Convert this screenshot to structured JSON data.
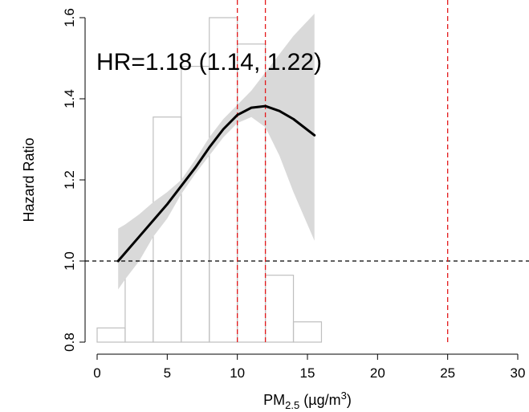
{
  "chart_data": {
    "type": "line",
    "title": "",
    "annotation": "HR=1.18 (1.14, 1.22)",
    "xlabel": {
      "main": "PM",
      "sub": "2.5",
      "unit_prefix": " (µg/m",
      "unit_sup": "3",
      "unit_suffix": ")"
    },
    "ylabel": "Hazard Ratio",
    "xlim": [
      0,
      30
    ],
    "ylim": [
      0.8,
      1.6
    ],
    "x_ticks": [
      0,
      5,
      10,
      15,
      20,
      25,
      30
    ],
    "y_ticks": [
      0.8,
      1.0,
      1.2,
      1.4,
      1.6
    ],
    "x_tick_labels": [
      "0",
      "5",
      "10",
      "15",
      "20",
      "25",
      "30"
    ],
    "y_tick_labels": [
      "0.8",
      "1.0",
      "1.2",
      "1.4",
      "1.6"
    ],
    "series": [
      {
        "type": "line",
        "x": [
          1.5,
          2,
          3,
          4,
          5,
          6,
          7,
          8,
          9,
          10,
          11,
          12,
          13,
          14,
          15.5
        ],
        "y": [
          1.0,
          1.02,
          1.06,
          1.1,
          1.14,
          1.185,
          1.23,
          1.28,
          1.325,
          1.36,
          1.378,
          1.382,
          1.37,
          1.35,
          1.31
        ]
      },
      {
        "type": "band",
        "x": [
          1.5,
          2,
          3,
          4,
          5,
          6,
          7,
          8,
          9,
          10,
          11,
          12,
          13,
          14,
          15.5
        ],
        "upper": [
          1.08,
          1.09,
          1.115,
          1.145,
          1.17,
          1.2,
          1.25,
          1.305,
          1.35,
          1.385,
          1.42,
          1.465,
          1.51,
          1.555,
          1.61
        ],
        "lower": [
          0.93,
          0.955,
          1.0,
          1.06,
          1.105,
          1.165,
          1.215,
          1.26,
          1.305,
          1.34,
          1.355,
          1.33,
          1.26,
          1.17,
          1.05
        ]
      }
    ],
    "histogram": {
      "bin_edges": [
        0,
        2,
        4,
        6,
        8,
        10,
        12,
        14,
        16
      ],
      "heights": [
        0.835,
        1.0,
        1.355,
        1.48,
        1.6,
        1.535,
        0.965,
        0.85
      ]
    },
    "reference_lines": {
      "horizontal": [
        1.0
      ],
      "vertical": [
        10,
        12,
        25
      ]
    },
    "colors": {
      "line": "#000000",
      "band": "#d9d9d9",
      "histogram": "#bfbfbf",
      "reference_horizontal": "#000000",
      "reference_vertical": "#e41a1c"
    }
  }
}
